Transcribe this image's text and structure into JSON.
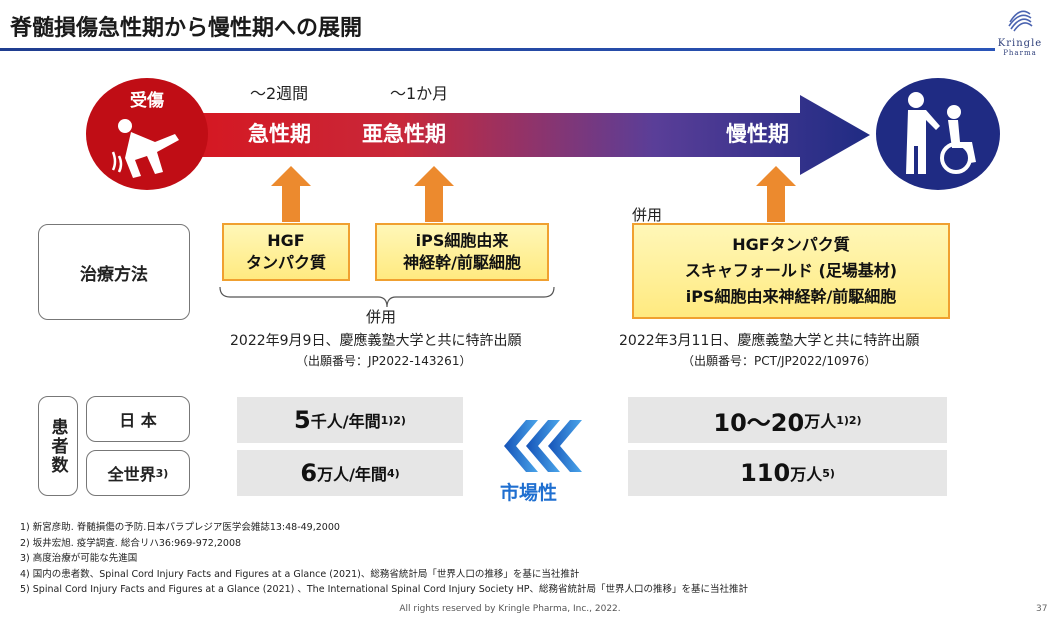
{
  "slide": {
    "title": "脊髄損傷急性期から慢性期への展開",
    "logo": {
      "name": "Kringle",
      "sub": "Pharma"
    },
    "timeline": {
      "injury_label": "受傷",
      "phases": [
        {
          "label": "急性期",
          "duration": "～2週間"
        },
        {
          "label": "亜急性期",
          "duration": "～1か月"
        },
        {
          "label": "慢性期",
          "duration": ""
        }
      ]
    },
    "treatment": {
      "row_label": "治療方法",
      "boxes": [
        {
          "lines": [
            "HGF",
            "タンパク質"
          ]
        },
        {
          "lines": [
            "iPS細胞由来",
            "神経幹/前駆細胞"
          ]
        },
        {
          "lines": [
            "HGFタンパク質",
            "スキャフォールド (足場基材)",
            "iPS細胞由来神経幹/前駆細胞"
          ]
        }
      ],
      "combo_left": "併用",
      "combo_right": "併用",
      "patent_left": {
        "line": "2022年9月9日、慶應義塾大学と共に特許出願",
        "number": "（出願番号：JP2022-143261）"
      },
      "patent_right": {
        "line": "2022年3月11日、慶應義塾大学と共に特許出願",
        "number": "（出願番号：PCT/JP2022/10976）"
      }
    },
    "patients": {
      "row_label": "患者数",
      "rows": [
        {
          "region": "日 本",
          "region_sup": "",
          "acute_main": "5",
          "acute_unit": "千人/年間",
          "acute_sup": "1)2)",
          "chronic_main": "10～20",
          "chronic_unit": "万人",
          "chronic_sup": "1)2)"
        },
        {
          "region": "全世界",
          "region_sup": "3)",
          "acute_main": "6",
          "acute_unit": "万人/年間",
          "acute_sup": "4)",
          "chronic_main": "110",
          "chronic_unit": "万人",
          "chronic_sup": "5)"
        }
      ],
      "market_label": "市場性"
    },
    "footnotes": [
      "1)  新宮彦助. 脊髄損傷の予防.日本パラプレジア医学会雑誌13:48-49,2000",
      "2)  坂井宏旭. 疫学調査. 総合リハ36:969-972,2008",
      "3)  高度治療が可能な先進国",
      "4)  国内の患者数、Spinal Cord Injury Facts and Figures at a Glance (2021)、総務省統計局「世界人口の推移」を基に当社推計",
      "5)  Spinal Cord Injury Facts and Figures at a Glance (2021) 、The International Spinal Cord Injury Society HP、総務省統計局「世界人口の推移」を基に当社推計"
    ],
    "copyright": "All rights reserved by Kringle Pharma, Inc., 2022.",
    "page_number": "37",
    "colors": {
      "injury": "#c00d15",
      "chronic": "#1f2b83",
      "arrow_up": "#ec8a2e",
      "box_border": "#f0a030",
      "market": "#1f6fd0"
    }
  }
}
